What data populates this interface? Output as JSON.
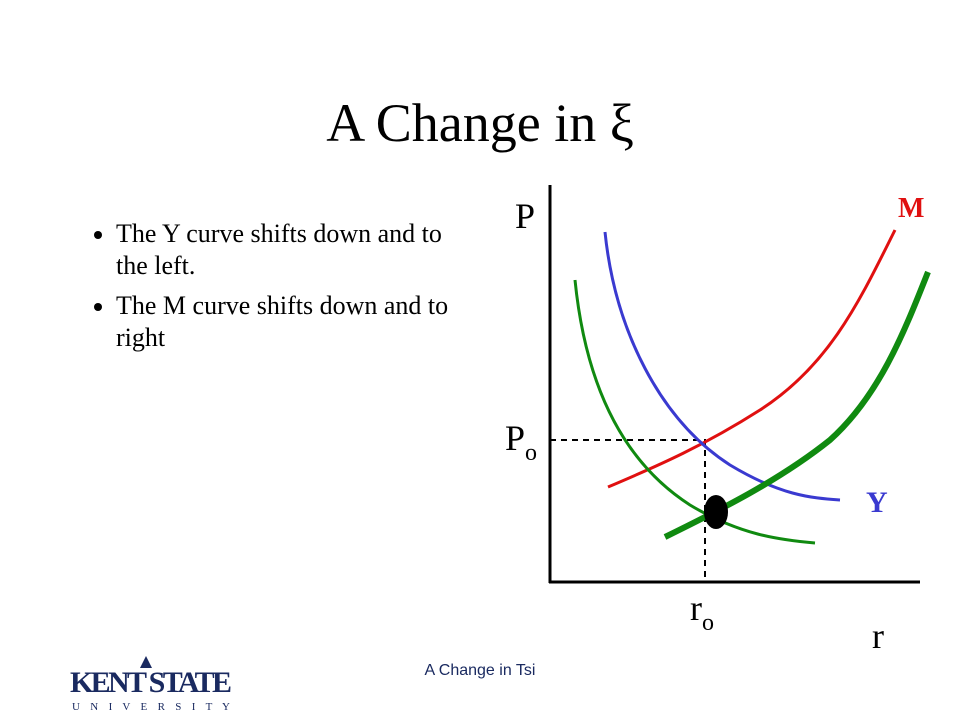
{
  "title": "A Change in ξ",
  "bullets": [
    "The Y curve shifts down and to the left.",
    "The M curve shifts down and to right"
  ],
  "diagram": {
    "y_axis_label": "P",
    "x_axis_label": "r",
    "m_label": "M",
    "y_label": "Y",
    "p_eq": {
      "main": "P",
      "sub": "o"
    },
    "r_eq": {
      "main": "r",
      "sub": "o"
    }
  },
  "footer": "A Change in Tsi",
  "logo": {
    "name": "KENT STATE",
    "sub": "U N I V E R S I T Y"
  }
}
